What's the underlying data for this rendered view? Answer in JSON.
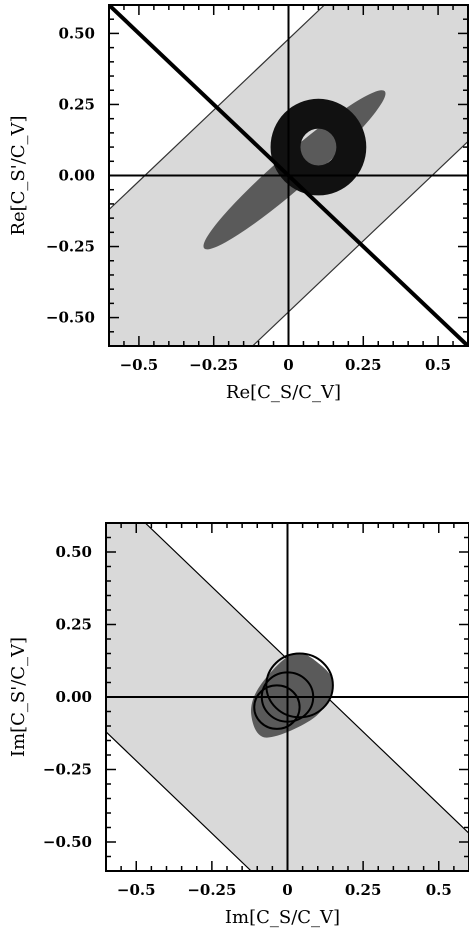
{
  "chart_data": [
    {
      "type": "scatter",
      "title": "",
      "xlabel": "Re[C_S/C_V]",
      "ylabel": "Re[C_S'/C_V]",
      "xlim": [
        -0.6,
        0.6
      ],
      "ylim": [
        -0.6,
        0.6
      ],
      "xticks": [
        -0.5,
        -0.25,
        0,
        0.25,
        0.5
      ],
      "xtick_labels": [
        "−0.5",
        "−0.25",
        "0",
        "0.25",
        "0.5"
      ],
      "yticks": [
        0.5,
        0.25,
        0.0,
        -0.25,
        -0.5
      ],
      "ytick_labels": [
        "0.50",
        "0.25",
        "0.00",
        "−0.25",
        "−0.50"
      ],
      "grid": false,
      "reference_lines": {
        "x": 0,
        "y": 0,
        "diagonal": "y = -x"
      },
      "regions": [
        {
          "kind": "band",
          "color": "#d9d9d9",
          "edge_color": "#333333",
          "polygon": [
            [
              -0.6,
              -0.12
            ],
            [
              0.12,
              0.6
            ],
            [
              0.6,
              0.6
            ],
            [
              0.6,
              0.12
            ],
            [
              -0.12,
              -0.6
            ],
            [
              -0.6,
              -0.6
            ]
          ]
        },
        {
          "kind": "ellipse",
          "color": "#5a5a5a",
          "center": [
            0.02,
            0.02
          ],
          "semi_axes": [
            0.4,
            0.06
          ],
          "angle_deg": -41
        },
        {
          "kind": "ring",
          "color": "#111111",
          "center": [
            0.1,
            0.1
          ],
          "outer_radius": [
            0.16,
            0.17
          ],
          "inner_radius": [
            0.06,
            0.065
          ]
        }
      ]
    },
    {
      "type": "scatter",
      "title": "",
      "xlabel": "Im[C_S/C_V]",
      "ylabel": "Im[C_S'/C_V]",
      "xlim": [
        -0.6,
        0.6
      ],
      "ylim": [
        -0.6,
        0.6
      ],
      "xticks": [
        -0.5,
        -0.25,
        0,
        0.25,
        0.5
      ],
      "xtick_labels": [
        "−0.5",
        "−0.25",
        "0",
        "0.25",
        "0.5"
      ],
      "yticks": [
        0.5,
        0.25,
        0.0,
        -0.25,
        -0.5
      ],
      "ytick_labels": [
        "0.50",
        "0.25",
        "0.00",
        "−0.25",
        "−0.50"
      ],
      "grid": false,
      "reference_lines": {
        "x": 0,
        "y": 0
      },
      "regions": [
        {
          "kind": "band",
          "color": "#d9d9d9",
          "edge_color": "#000000",
          "polygon": [
            [
              -0.6,
              0.6
            ],
            [
              -0.47,
              0.6
            ],
            [
              0.6,
              -0.47
            ],
            [
              0.6,
              -0.6
            ],
            [
              -0.12,
              -0.6
            ],
            [
              -0.6,
              -0.12
            ]
          ]
        },
        {
          "kind": "blob",
          "color": "#5a5a5a",
          "outline": [
            [
              -0.07,
              -0.14
            ],
            [
              0.09,
              -0.07
            ],
            [
              0.15,
              0.04
            ],
            [
              0.11,
              0.11
            ],
            [
              0.02,
              0.15
            ],
            [
              -0.09,
              0.04
            ],
            [
              -0.12,
              -0.06
            ]
          ]
        },
        {
          "kind": "circles",
          "color": "#000000",
          "items": [
            {
              "center": [
                0.04,
                0.04
              ],
              "radius": 0.11
            },
            {
              "center": [
                0.0,
                0.0
              ],
              "radius": 0.085
            },
            {
              "center": [
                -0.035,
                -0.035
              ],
              "radius": 0.075
            }
          ]
        }
      ]
    }
  ]
}
